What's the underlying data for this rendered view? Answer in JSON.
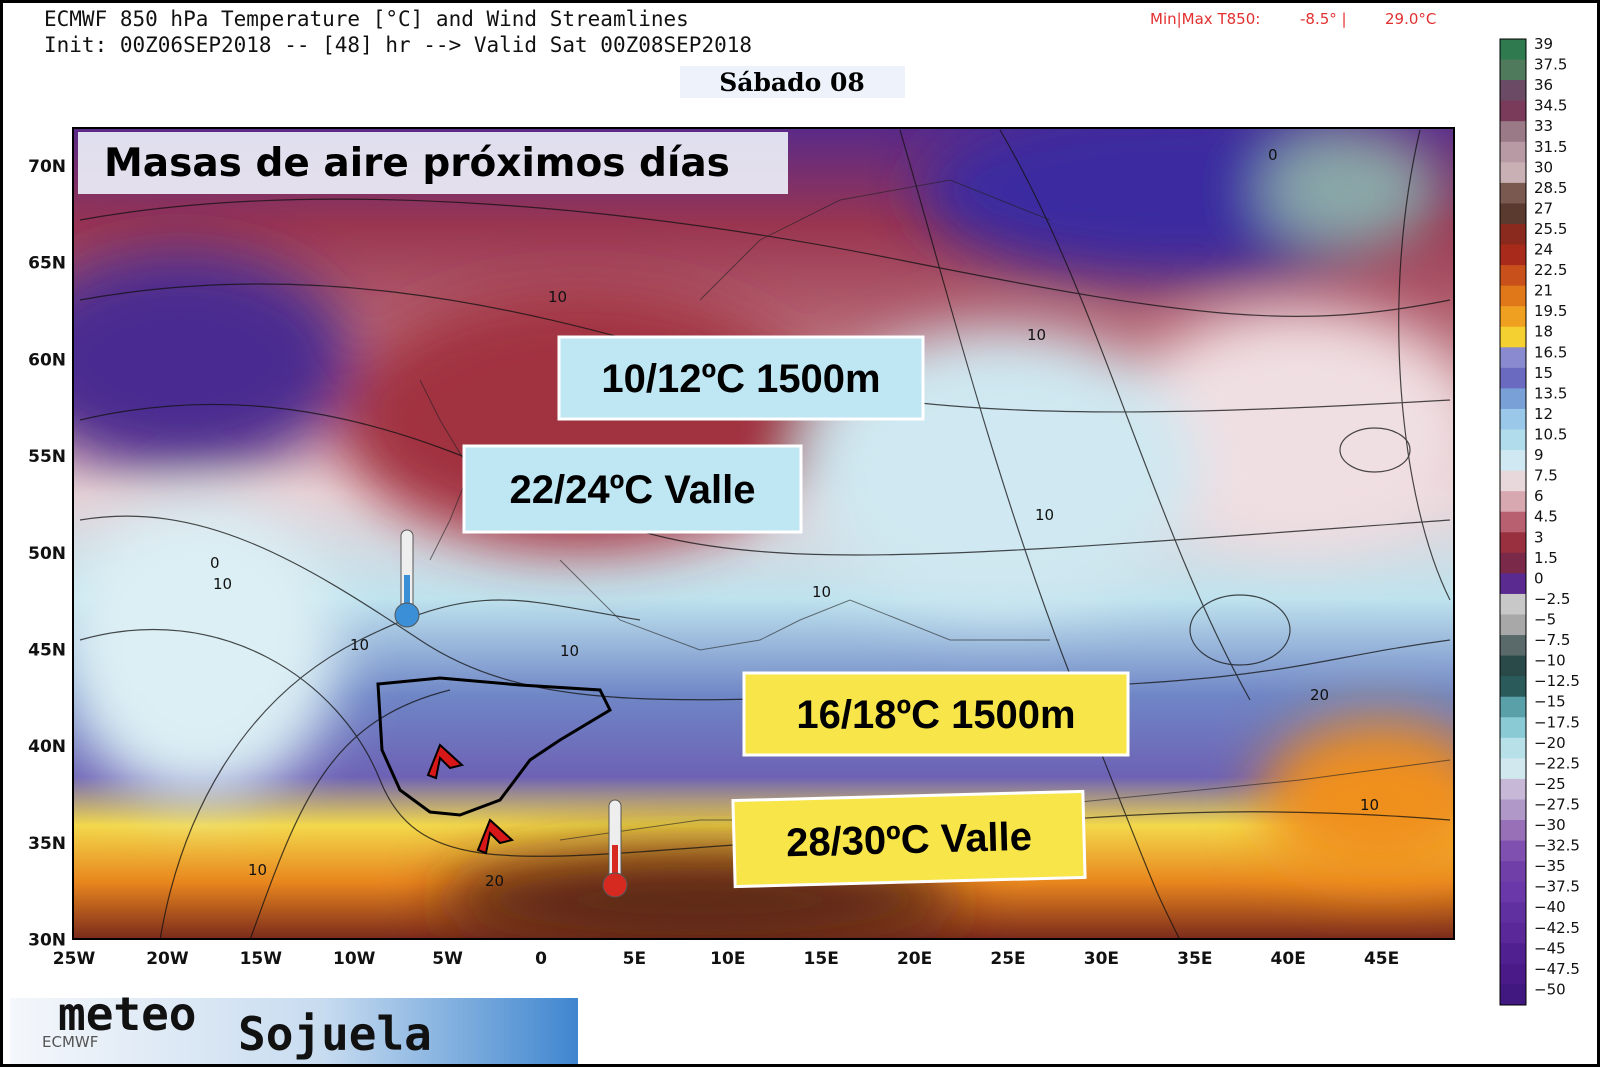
{
  "header": {
    "title": "ECMWF 850 hPa Temperature [°C] and Wind Streamlines",
    "init": "Init: 00Z06SEP2018 -- [48] hr --> Valid Sat 00Z08SEP2018",
    "minmax_label": "Min|Max T850:",
    "min": "-8.5° |",
    "max": "29.0°C",
    "day": "Sábado 08"
  },
  "map": {
    "title": "Masas de aire próximos días",
    "lat_labels": [
      "70N",
      "65N",
      "60N",
      "55N",
      "50N",
      "45N",
      "40N",
      "35N",
      "30N"
    ],
    "lon_labels": [
      "25W",
      "20W",
      "15W",
      "10W",
      "5W",
      "0",
      "5E",
      "10E",
      "15E",
      "20E",
      "25E",
      "30E",
      "35E",
      "40E",
      "45E"
    ],
    "callouts": [
      "10/12ºC 1500m",
      "22/24ºC Valle",
      "16/18ºC 1500m",
      "28/30ºC Valle"
    ],
    "contour_labels": [
      "0",
      "10",
      "10",
      "0",
      "10",
      "10",
      "10",
      "10",
      "10",
      "10",
      "20",
      "20",
      "10"
    ]
  },
  "colorbar": {
    "labels": [
      "39",
      "37.5",
      "36",
      "34.5",
      "33",
      "31.5",
      "30",
      "28.5",
      "27",
      "25.5",
      "24",
      "22.5",
      "21",
      "19.5",
      "18",
      "16.5",
      "15",
      "13.5",
      "12",
      "10.5",
      "9",
      "7.5",
      "6",
      "4.5",
      "3",
      "1.5",
      "0",
      "−2.5",
      "−5",
      "−7.5",
      "−10",
      "−12.5",
      "−15",
      "−17.5",
      "−20",
      "−22.5",
      "−25",
      "−27.5",
      "−30",
      "−32.5",
      "−35",
      "−37.5",
      "−40",
      "−42.5",
      "−45",
      "−47.5",
      "−50"
    ]
  },
  "footer": {
    "brand": "meteo",
    "brand2": "Sojuela",
    "source": "ECMWF"
  }
}
